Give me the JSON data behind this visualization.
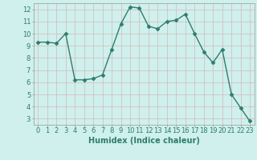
{
  "x": [
    0,
    1,
    2,
    3,
    4,
    5,
    6,
    7,
    8,
    9,
    10,
    11,
    12,
    13,
    14,
    15,
    16,
    17,
    18,
    19,
    20,
    21,
    22,
    23
  ],
  "y": [
    9.3,
    9.3,
    9.2,
    10.0,
    6.2,
    6.2,
    6.3,
    6.6,
    8.7,
    10.8,
    12.2,
    12.1,
    10.6,
    10.4,
    11.0,
    11.1,
    11.6,
    10.0,
    8.5,
    7.6,
    8.7,
    5.0,
    3.9,
    2.8
  ],
  "line_color": "#2e7d6e",
  "marker": "D",
  "markersize": 2.5,
  "linewidth": 1.0,
  "background_color": "#cff0ec",
  "grid_color": "#d4b8b8",
  "xlabel": "Humidex (Indice chaleur)",
  "xlabel_fontsize": 7,
  "tick_fontsize": 6,
  "xlim": [
    -0.5,
    23.5
  ],
  "ylim": [
    2.5,
    12.5
  ],
  "yticks": [
    3,
    4,
    5,
    6,
    7,
    8,
    9,
    10,
    11,
    12
  ],
  "xticks": [
    0,
    1,
    2,
    3,
    4,
    5,
    6,
    7,
    8,
    9,
    10,
    11,
    12,
    13,
    14,
    15,
    16,
    17,
    18,
    19,
    20,
    21,
    22,
    23
  ]
}
